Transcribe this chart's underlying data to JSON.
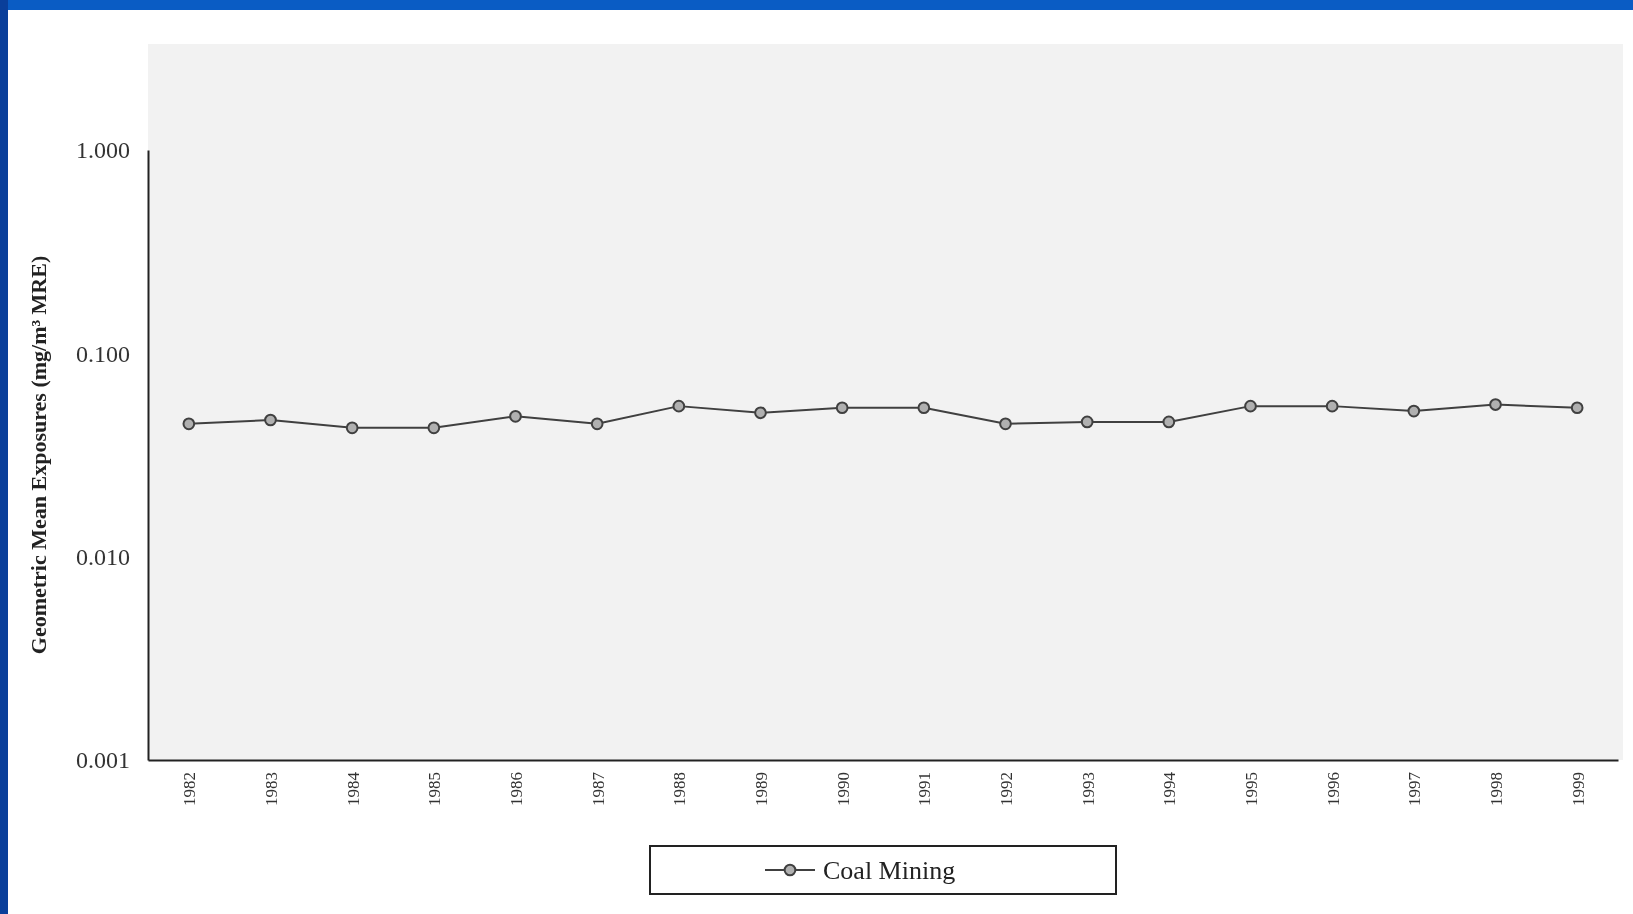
{
  "chart_data": {
    "type": "line",
    "ylabel": "Geometric Mean Exposures (mg/m³ MRE)",
    "categories": [
      "1982",
      "1983",
      "1984",
      "1985",
      "1986",
      "1987",
      "1988",
      "1989",
      "1990",
      "1991",
      "1992",
      "1993",
      "1994",
      "1995",
      "1996",
      "1997",
      "1998",
      "1999"
    ],
    "series": [
      {
        "name": "Coal Mining",
        "color": "#404040",
        "values": [
          0.045,
          0.047,
          0.043,
          0.043,
          0.049,
          0.045,
          0.055,
          0.051,
          0.054,
          0.054,
          0.045,
          0.046,
          0.046,
          0.055,
          0.055,
          0.052,
          0.056,
          0.054
        ]
      }
    ],
    "log": true,
    "ylim": [
      0.001,
      1
    ],
    "yticks": [
      {
        "value": 0.001,
        "label": "0.001"
      },
      {
        "value": 0.01,
        "label": "0.010"
      },
      {
        "value": 0.1,
        "label": "0.100"
      },
      {
        "value": 1,
        "label": "1.000"
      }
    ],
    "marker": "circle",
    "legend": "bottom",
    "grid": false
  }
}
